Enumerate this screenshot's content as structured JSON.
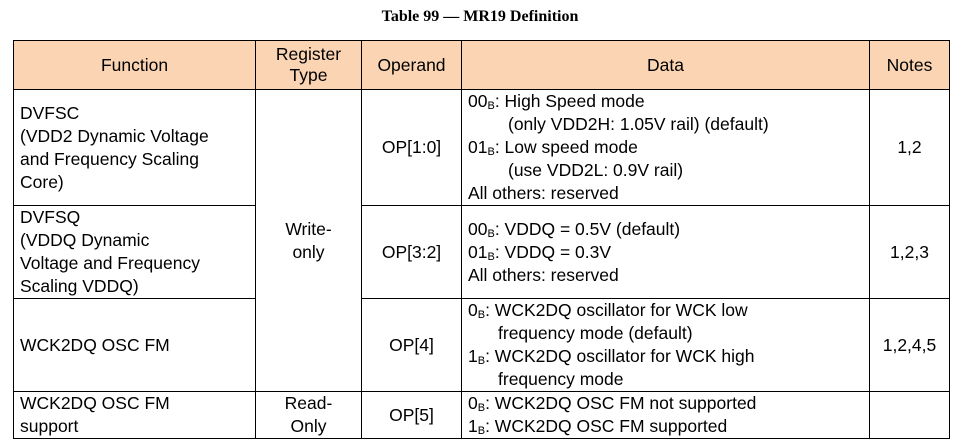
{
  "caption": "Table 99 — MR19 Definition",
  "headers": {
    "function": "Function",
    "register_type_1": "Register",
    "register_type_2": "Type",
    "operand": "Operand",
    "data": "Data",
    "notes": "Notes"
  },
  "rows": [
    {
      "function": [
        "DVFSC",
        "(VDD2 Dynamic Voltage",
        "and Frequency Scaling",
        "Core)"
      ],
      "operand": "OP[1:0]",
      "data": {
        "l1_code": "00",
        "l1_sub": "B",
        "l1_text": ": High Speed mode",
        "l2_text": "(only VDD2H: 1.05V rail) (default)",
        "l3_code": "01",
        "l3_sub": "B",
        "l3_text": ": Low speed mode",
        "l4_text": "(use VDD2L: 0.9V rail)",
        "l5_text": "All others: reserved"
      },
      "notes": "1,2"
    },
    {
      "function": [
        "DVFSQ",
        "(VDDQ Dynamic",
        "Voltage and Frequency",
        "Scaling VDDQ)"
      ],
      "operand": "OP[3:2]",
      "data": {
        "l1_code": "00",
        "l1_sub": "B",
        "l1_text": ": VDDQ = 0.5V (default)",
        "l2_code": "01",
        "l2_sub": "B",
        "l2_text": ": VDDQ = 0.3V",
        "l3_text": "All others: reserved"
      },
      "notes": "1,2,3"
    },
    {
      "function": [
        "WCK2DQ OSC FM"
      ],
      "operand": "OP[4]",
      "data": {
        "l1_code": "0",
        "l1_sub": "B",
        "l1_text": ": WCK2DQ oscillator for WCK low",
        "l2_text": "frequency mode (default)",
        "l3_code": "1",
        "l3_sub": "B",
        "l3_text": ": WCK2DQ oscillator for WCK high",
        "l4_text": "frequency mode"
      },
      "notes": "1,2,4,5"
    },
    {
      "function": [
        "WCK2DQ OSC FM",
        "support"
      ],
      "operand": "OP[5]",
      "data": {
        "l1_code": "0",
        "l1_sub": "B",
        "l1_text": ": WCK2DQ OSC FM not supported",
        "l2_code": "1",
        "l2_sub": "B",
        "l2_text": ": WCK2DQ OSC FM supported"
      },
      "notes": ""
    }
  ],
  "register_type": {
    "write_only_1": "Write-",
    "write_only_2": "only",
    "read_only_1": "Read-",
    "read_only_2": "Only"
  }
}
